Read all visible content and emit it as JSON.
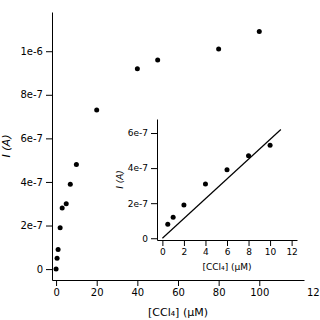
{
  "chart_data": [
    {
      "type": "scatter",
      "x": [
        0,
        0.5,
        1,
        2,
        3,
        5,
        7,
        10,
        20,
        40,
        50,
        80,
        100
      ],
      "values": [
        0,
        5e-08,
        9e-08,
        1.9e-07,
        2.8e-07,
        3e-07,
        3.9e-07,
        4.8e-07,
        7.3e-07,
        9.2e-07,
        9.6e-07,
        1.01e-06,
        1.09e-06
      ],
      "color": "black",
      "xlabel": "[CCl₄] (μM)",
      "ylabel": "I (A)",
      "xlim": [
        -2,
        122
      ],
      "ylim": [
        -5e-08,
        1.18e-06
      ],
      "xticks": [
        0,
        20,
        40,
        60,
        80,
        100
      ],
      "yticks": [
        0,
        {
          "value": 2e-07,
          "label": "2e-7"
        },
        {
          "value": 4e-07,
          "label": "4e-7"
        },
        {
          "value": 6e-07,
          "label": "6e-7"
        },
        {
          "value": 8e-07,
          "label": "8e-7"
        },
        {
          "value": 1e-06,
          "label": "1e-6"
        }
      ],
      "annotations": [
        "12"
      ]
    },
    {
      "type": "scatter",
      "series": [
        {
          "type": "line",
          "color": "black",
          "x": [
            0,
            11
          ],
          "values": [
            0,
            6.2e-07
          ]
        },
        {
          "type": "scatter",
          "color": "black",
          "x": [
            0.5,
            1,
            2,
            4,
            6,
            8,
            10
          ],
          "values": [
            8e-08,
            1.2e-07,
            1.9e-07,
            3.1e-07,
            3.9e-07,
            4.7e-07,
            5.3e-07
          ]
        }
      ],
      "xlabel": "[CCl₄] (μM)",
      "ylabel": "I (A)",
      "xlim": [
        -0.5,
        12.5
      ],
      "ylim": [
        -1e-08,
        6.8e-07
      ],
      "xticks": [
        0,
        2,
        4,
        6,
        8,
        10,
        12
      ],
      "yticks": [
        0,
        {
          "value": 2e-07,
          "label": "2e-7"
        },
        {
          "value": 4e-07,
          "label": "4e-7"
        },
        {
          "value": 6e-07,
          "label": "6e-7"
        }
      ]
    }
  ]
}
